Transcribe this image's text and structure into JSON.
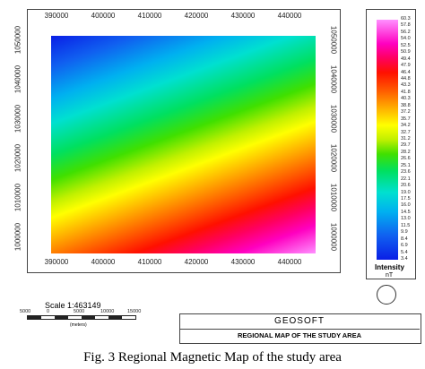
{
  "map": {
    "x_ticks": [
      "390000",
      "400000",
      "410000",
      "420000",
      "430000",
      "440000"
    ],
    "y_ticks": [
      "1050000",
      "1040000",
      "1030000",
      "1020000",
      "1010000",
      "1000000"
    ]
  },
  "colorbar": {
    "labels": [
      "60.3",
      "57.8",
      "56.2",
      "54.0",
      "52.5",
      "50.9",
      "49.4",
      "47.9",
      "46.4",
      "44.8",
      "43.3",
      "41.8",
      "40.3",
      "38.8",
      "37.2",
      "35.7",
      "34.2",
      "32.7",
      "31.2",
      "29.7",
      "28.2",
      "26.6",
      "25.1",
      "23.6",
      "22.1",
      "20.6",
      "19.0",
      "17.5",
      "16.0",
      "14.5",
      "13.0",
      "11.5",
      "9.9",
      "8.4",
      "6.9",
      "5.4",
      "3.4"
    ],
    "title": "Intensity",
    "unit": "nT"
  },
  "scale": {
    "title": "Scale 1:463149",
    "ticks": [
      "5000",
      "0",
      "5000",
      "10000",
      "15000"
    ],
    "unit": "(meters)"
  },
  "title_block": {
    "name": "GEOSOFT",
    "title": "REGIONAL MAP OF THE STUDY AREA"
  },
  "caption": "Fig. 3 Regional Magnetic Map of the study area"
}
